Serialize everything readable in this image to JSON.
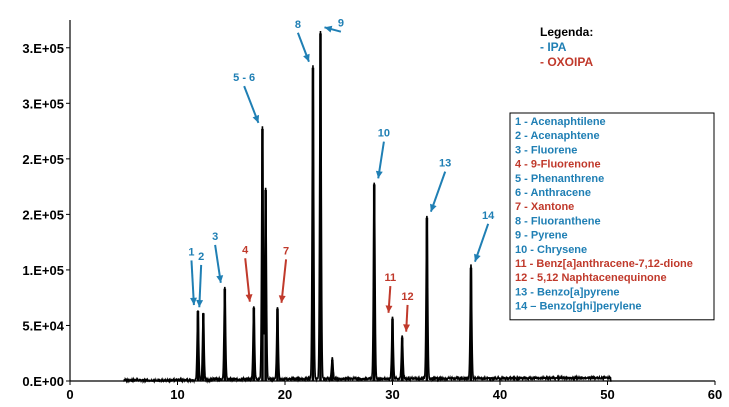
{
  "chart_data": {
    "type": "line",
    "xlim": [
      0,
      60
    ],
    "ylim": [
      0,
      325000
    ],
    "x_ticks": [
      0,
      10,
      20,
      30,
      40,
      50,
      60
    ],
    "x_tick_labels": [
      "0",
      "10",
      "20",
      "30",
      "40",
      "50",
      "60"
    ],
    "y_ticks": [
      0,
      50000,
      100000,
      150000,
      200000,
      250000,
      300000
    ],
    "y_tick_labels": [
      "0.E+00",
      "5.E+04",
      "1.E+05",
      "2.E+05",
      "2.E+05",
      "3.E+05",
      "3.E+05"
    ],
    "grid": false,
    "peaks": [
      {
        "x": 11.9,
        "y": 63000
      },
      {
        "x": 12.4,
        "y": 61000
      },
      {
        "x": 14.4,
        "y": 83000
      },
      {
        "x": 17.1,
        "y": 66000
      },
      {
        "x": 17.9,
        "y": 227000
      },
      {
        "x": 18.2,
        "y": 172000
      },
      {
        "x": 19.3,
        "y": 65000
      },
      {
        "x": 22.6,
        "y": 282000
      },
      {
        "x": 23.3,
        "y": 313000
      },
      {
        "x": 24.4,
        "y": 19000
      },
      {
        "x": 28.3,
        "y": 177000
      },
      {
        "x": 30.0,
        "y": 56000
      },
      {
        "x": 30.9,
        "y": 39000
      },
      {
        "x": 33.2,
        "y": 147000
      },
      {
        "x": 37.3,
        "y": 102000
      }
    ],
    "peak_labels": [
      {
        "text": "1",
        "group": "IPA",
        "x": 11.3,
        "y": 113000
      },
      {
        "text": "2",
        "group": "IPA",
        "x": 12.2,
        "y": 109000
      },
      {
        "text": "3",
        "group": "IPA",
        "x": 13.5,
        "y": 127000
      },
      {
        "text": "4",
        "group": "OXOIPA",
        "x": 16.3,
        "y": 115000
      },
      {
        "text": "5 - 6",
        "group": "IPA",
        "x": 16.2,
        "y": 270000
      },
      {
        "text": "7",
        "group": "OXOIPA",
        "x": 20.1,
        "y": 114000
      },
      {
        "text": "8",
        "group": "IPA",
        "x": 21.2,
        "y": 318000
      },
      {
        "text": "9",
        "group": "IPA",
        "x": 25.2,
        "y": 319000
      },
      {
        "text": "10",
        "group": "IPA",
        "x": 29.2,
        "y": 220000
      },
      {
        "text": "11",
        "group": "OXOIPA",
        "x": 29.8,
        "y": 90000
      },
      {
        "text": "12",
        "group": "OXOIPA",
        "x": 31.4,
        "y": 73000
      },
      {
        "text": "13",
        "group": "IPA",
        "x": 34.9,
        "y": 193000
      },
      {
        "text": "14",
        "group": "IPA",
        "x": 38.9,
        "y": 146000
      }
    ],
    "legend": {
      "title": "Legenda:",
      "entries": [
        {
          "label": "- IPA",
          "color": "#1f7fb4"
        },
        {
          "label": "- OXOIPA",
          "color": "#c0392b"
        }
      ]
    },
    "compounds": [
      {
        "label": "1 - Acenaphtilene",
        "group": "IPA"
      },
      {
        "label": "2 - Acenaphtene",
        "group": "IPA"
      },
      {
        "label": "3 - Fluorene",
        "group": "IPA"
      },
      {
        "label": "4 - 9-Fluorenone",
        "group": "OXOIPA"
      },
      {
        "label": "5 - Phenanthrene",
        "group": "IPA"
      },
      {
        "label": "6 - Anthracene",
        "group": "IPA"
      },
      {
        "label": "7 - Xantone",
        "group": "OXOIPA"
      },
      {
        "label": "8 - Fluoranthene",
        "group": "IPA"
      },
      {
        "label": "9 - Pyrene",
        "group": "IPA"
      },
      {
        "label": "10 - Chrysene",
        "group": "IPA"
      },
      {
        "label": "11 - Benz[a]anthracene-7,12-dione",
        "group": "OXOIPA"
      },
      {
        "label": "12 - 5,12 Naphtacenequinone",
        "group": "OXOIPA"
      },
      {
        "label": "13 - Benzo[a]pyrene",
        "group": "IPA"
      },
      {
        "label": "14 – Benzo[ghi]perylene",
        "group": "IPA"
      }
    ],
    "colors": {
      "IPA": "#1f7fb4",
      "OXOIPA": "#c0392b",
      "trace": "#000000"
    }
  }
}
